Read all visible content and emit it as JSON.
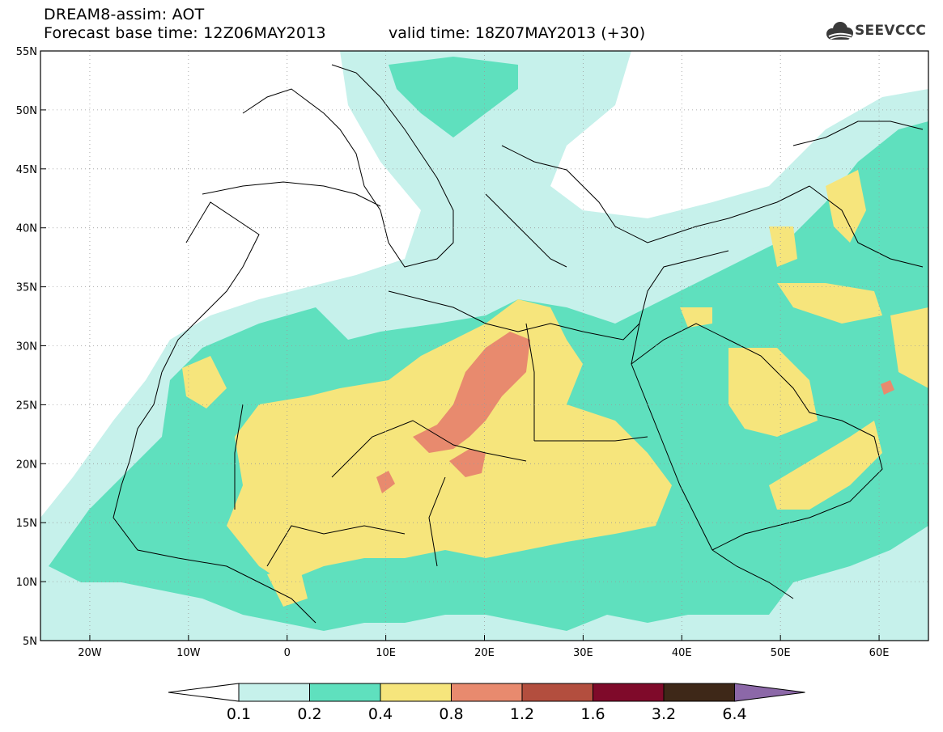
{
  "header": {
    "title": "DREAM8-assim: AOT",
    "base_time": "Forecast base time: 12Z06MAY2013",
    "valid_time": "valid time: 18Z07MAY2013 (+30)"
  },
  "logo": {
    "text": "SEEVCCC",
    "icon": "cloud-logo-icon"
  },
  "map": {
    "lon_range": [
      -25,
      65
    ],
    "lat_range": [
      5,
      55
    ],
    "lat_ticks": [
      {
        "value": 55,
        "label": "55N"
      },
      {
        "value": 50,
        "label": "50N"
      },
      {
        "value": 45,
        "label": "45N"
      },
      {
        "value": 40,
        "label": "40N"
      },
      {
        "value": 35,
        "label": "35N"
      },
      {
        "value": 30,
        "label": "30N"
      },
      {
        "value": 25,
        "label": "25N"
      },
      {
        "value": 20,
        "label": "20N"
      },
      {
        "value": 15,
        "label": "15N"
      },
      {
        "value": 10,
        "label": "10N"
      },
      {
        "value": 5,
        "label": "5N"
      }
    ],
    "lon_ticks": [
      {
        "value": -20,
        "label": "20W"
      },
      {
        "value": -10,
        "label": "10W"
      },
      {
        "value": 0,
        "label": "0"
      },
      {
        "value": 10,
        "label": "10E"
      },
      {
        "value": 20,
        "label": "20E"
      },
      {
        "value": 30,
        "label": "30E"
      },
      {
        "value": 40,
        "label": "40E"
      },
      {
        "value": 50,
        "label": "50E"
      },
      {
        "value": 60,
        "label": "60E"
      }
    ],
    "grid": true
  },
  "colorbar": {
    "labels": [
      "0.1",
      "0.2",
      "0.4",
      "0.8",
      "1.2",
      "1.6",
      "3.2",
      "6.4"
    ],
    "colors": [
      "#ffffff",
      "#c6f1eb",
      "#5fe0be",
      "#f6e57c",
      "#e88a6e",
      "#b34e3e",
      "#7f0a2a",
      "#3e2818",
      "#8c68a8"
    ]
  }
}
